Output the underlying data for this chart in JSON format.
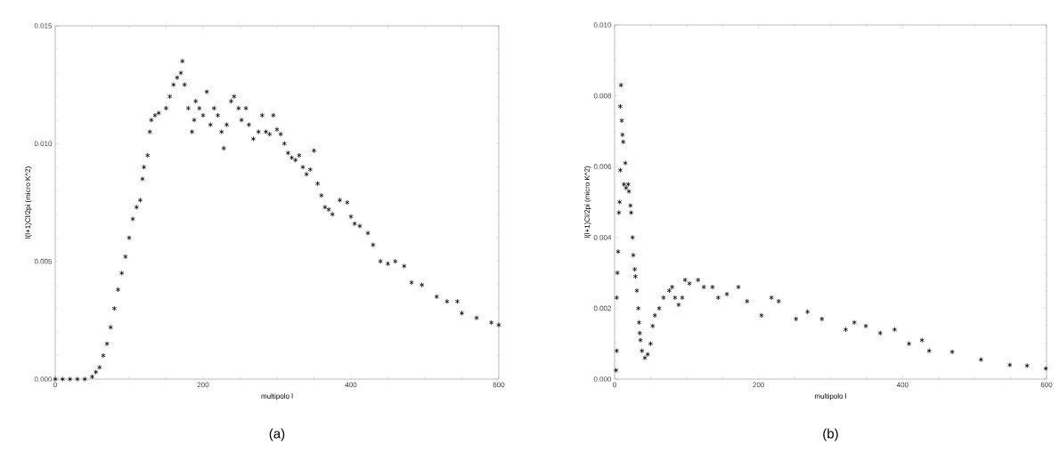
{
  "chart_data": [
    {
      "type": "scatter",
      "xlabel": "multipolo l",
      "ylabel": "l(l+1)Cl/2pi   (micro K^2)",
      "marker": "cross",
      "annotations": [
        "(a)"
      ],
      "xlim": [
        0,
        600
      ],
      "ylim": [
        0,
        0.015
      ],
      "xticks": [
        0,
        200,
        400,
        600
      ],
      "yticks": [
        {
          "value": 0,
          "label": "0.000"
        },
        {
          "value": 0.005,
          "label": "0.005"
        },
        {
          "value": 0.01,
          "label": "0.010"
        },
        {
          "value": 0.015,
          "label": "0.015"
        }
      ],
      "series": [
        {
          "color": "#000000",
          "x": [
            0,
            10,
            20,
            30,
            40,
            50,
            55,
            60,
            65,
            70,
            75,
            80,
            85,
            90,
            95,
            100,
            105,
            110,
            115,
            118,
            120,
            125,
            128,
            130,
            135,
            140,
            150,
            155,
            160,
            165,
            170,
            172,
            175,
            180,
            185,
            188,
            190,
            195,
            200,
            205,
            210,
            215,
            220,
            225,
            228,
            232,
            238,
            242,
            248,
            252,
            258,
            262,
            268,
            275,
            280,
            285,
            290,
            295,
            300,
            305,
            310,
            315,
            320,
            325,
            330,
            335,
            340,
            345,
            350,
            355,
            360,
            365,
            370,
            375,
            385,
            395,
            400,
            405,
            412,
            423,
            430,
            440,
            450,
            460,
            472,
            482,
            496,
            516,
            530,
            544,
            550,
            570,
            590,
            600
          ],
          "values": [
            0,
            0,
            0,
            0,
            0,
            0.0001,
            0.0003,
            0.0005,
            0.001,
            0.0015,
            0.0022,
            0.003,
            0.0038,
            0.0045,
            0.0052,
            0.006,
            0.0068,
            0.0073,
            0.0076,
            0.0085,
            0.009,
            0.0095,
            0.0105,
            0.011,
            0.0112,
            0.0113,
            0.0115,
            0.012,
            0.0125,
            0.0128,
            0.013,
            0.0135,
            0.0125,
            0.0115,
            0.0105,
            0.011,
            0.0118,
            0.0115,
            0.0112,
            0.0122,
            0.0108,
            0.0115,
            0.0112,
            0.0105,
            0.0098,
            0.0108,
            0.0118,
            0.012,
            0.0115,
            0.011,
            0.0115,
            0.0108,
            0.0102,
            0.0105,
            0.0112,
            0.0105,
            0.0104,
            0.0112,
            0.0106,
            0.0104,
            0.01,
            0.0096,
            0.0094,
            0.0093,
            0.0095,
            0.009,
            0.0087,
            0.0089,
            0.0097,
            0.0083,
            0.0078,
            0.0073,
            0.0072,
            0.007,
            0.0076,
            0.0075,
            0.0069,
            0.0066,
            0.0065,
            0.0062,
            0.0057,
            0.005,
            0.0049,
            0.005,
            0.0048,
            0.0041,
            0.004,
            0.0035,
            0.0033,
            0.0033,
            0.0028,
            0.0026,
            0.0024,
            0.0023
          ]
        }
      ]
    },
    {
      "type": "scatter",
      "xlabel": "multipolo l",
      "ylabel": "l(l+1)Cl/2pi   (micro K^2)",
      "marker": "cross",
      "annotations": [
        "(b)"
      ],
      "xlim": [
        0,
        600
      ],
      "ylim": [
        0,
        0.01
      ],
      "xticks": [
        0,
        200,
        400,
        600
      ],
      "yticks": [
        {
          "value": 0,
          "label": "0.000"
        },
        {
          "value": 0.002,
          "label": "0.002"
        },
        {
          "value": 0.004,
          "label": "0.004"
        },
        {
          "value": 0.006,
          "label": "0.006"
        },
        {
          "value": 0.008,
          "label": "0.008"
        },
        {
          "value": 0.01,
          "label": "0.010"
        }
      ],
      "series": [
        {
          "color": "#000000",
          "x": [
            2,
            3,
            3,
            4,
            5,
            6,
            7,
            8,
            8,
            9,
            10,
            11,
            12,
            13,
            15,
            16,
            19,
            20,
            22,
            23,
            25,
            26,
            28,
            29,
            31,
            33,
            34,
            35,
            36,
            38,
            42,
            46,
            50,
            53,
            56,
            62,
            68,
            76,
            80,
            84,
            89,
            94,
            98,
            104,
            116,
            124,
            136,
            144,
            156,
            172,
            184,
            204,
            218,
            228,
            252,
            268,
            288,
            321,
            333,
            349,
            369,
            389,
            409,
            427,
            437,
            469,
            509,
            549,
            573,
            599
          ],
          "values": [
            0.00025,
            0.0008,
            0.0023,
            0.003,
            0.0036,
            0.0047,
            0.005,
            0.0059,
            0.0077,
            0.0083,
            0.0073,
            0.0069,
            0.0067,
            0.0055,
            0.0061,
            0.0054,
            0.0055,
            0.0053,
            0.0049,
            0.0047,
            0.004,
            0.0035,
            0.0031,
            0.0029,
            0.0025,
            0.002,
            0.0016,
            0.0013,
            0.0011,
            0.0008,
            0.0006,
            0.0007,
            0.001,
            0.0015,
            0.0018,
            0.002,
            0.0023,
            0.0025,
            0.0026,
            0.0023,
            0.0021,
            0.0023,
            0.0028,
            0.0027,
            0.0028,
            0.0026,
            0.0026,
            0.0023,
            0.0024,
            0.0026,
            0.0022,
            0.0018,
            0.0023,
            0.0022,
            0.0017,
            0.0019,
            0.0017,
            0.0014,
            0.0016,
            0.0015,
            0.0013,
            0.0014,
            0.001,
            0.0011,
            0.0008,
            0.00077,
            0.00055,
            0.0004,
            0.00038,
            0.0003
          ]
        }
      ]
    }
  ]
}
